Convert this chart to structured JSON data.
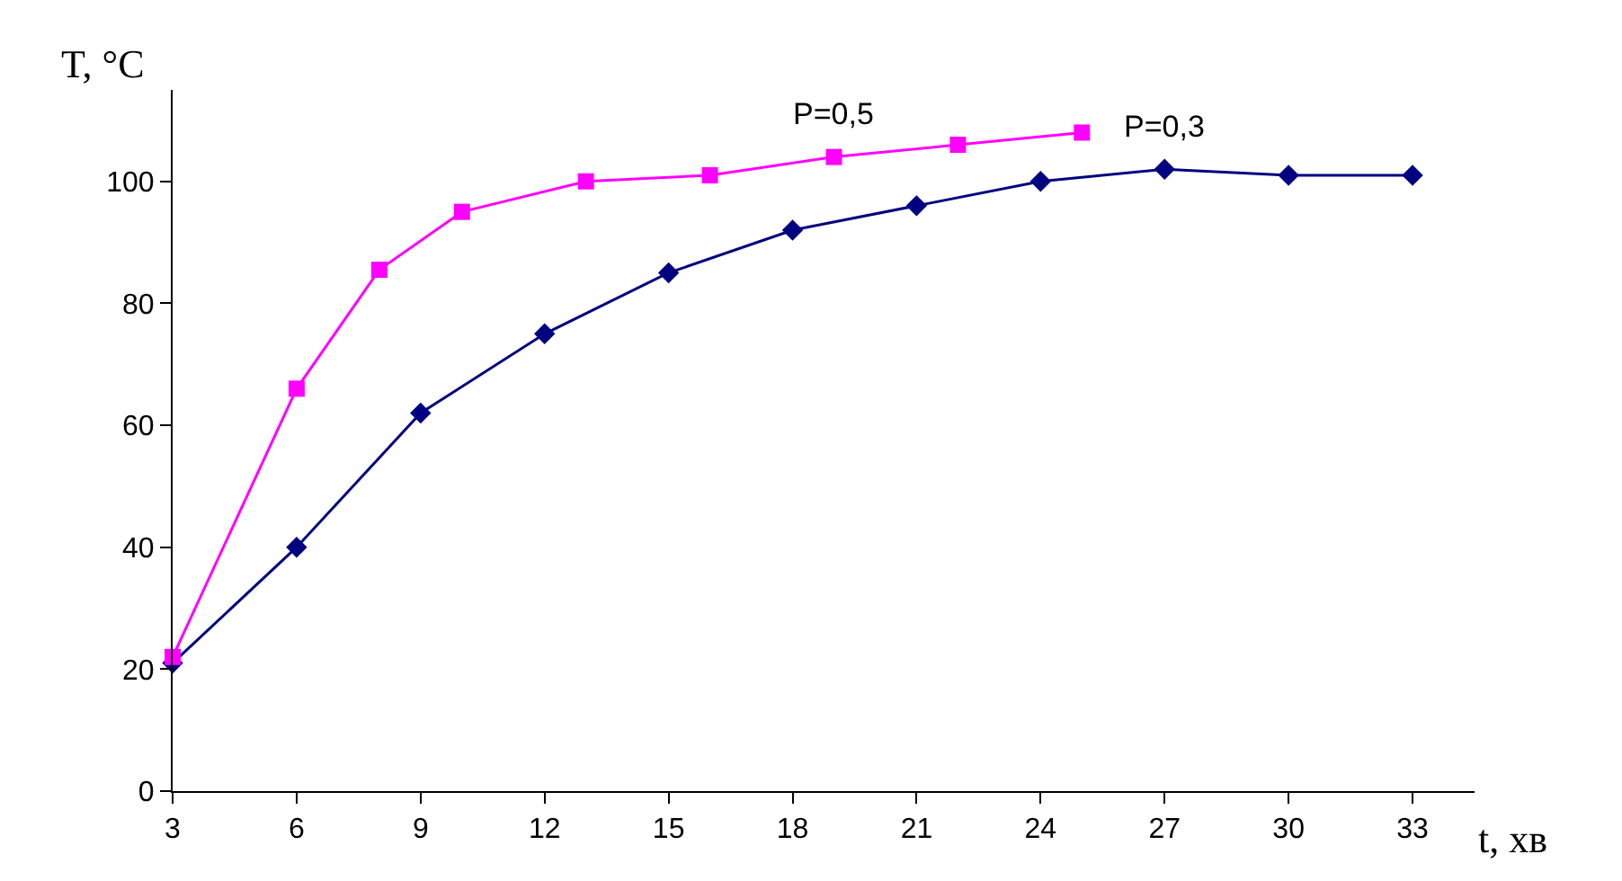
{
  "chart_data": {
    "type": "line",
    "xlabel": "t, хв",
    "ylabel": "T, °C",
    "xlim": [
      3,
      34.5
    ],
    "xticks": [
      3,
      6,
      9,
      12,
      15,
      18,
      21,
      24,
      27,
      30,
      33
    ],
    "ylim": [
      0,
      115
    ],
    "yticks": [
      0,
      20,
      40,
      60,
      80,
      100
    ],
    "grid": false,
    "legend": false,
    "series": [
      {
        "name": "P=0,5",
        "color": "#ff00ff",
        "marker": "square",
        "x": [
          3,
          6,
          8,
          10,
          13,
          16,
          19,
          22,
          25
        ],
        "values": [
          22,
          66,
          85.5,
          95,
          100,
          101,
          104,
          106,
          108
        ]
      },
      {
        "name": "P=0,3",
        "color": "#000080",
        "marker": "diamond",
        "x": [
          3,
          6,
          9,
          12,
          15,
          18,
          21,
          24,
          27,
          30,
          33
        ],
        "values": [
          21,
          40,
          62,
          75,
          85,
          92,
          96,
          100,
          102,
          101,
          101
        ]
      }
    ]
  }
}
